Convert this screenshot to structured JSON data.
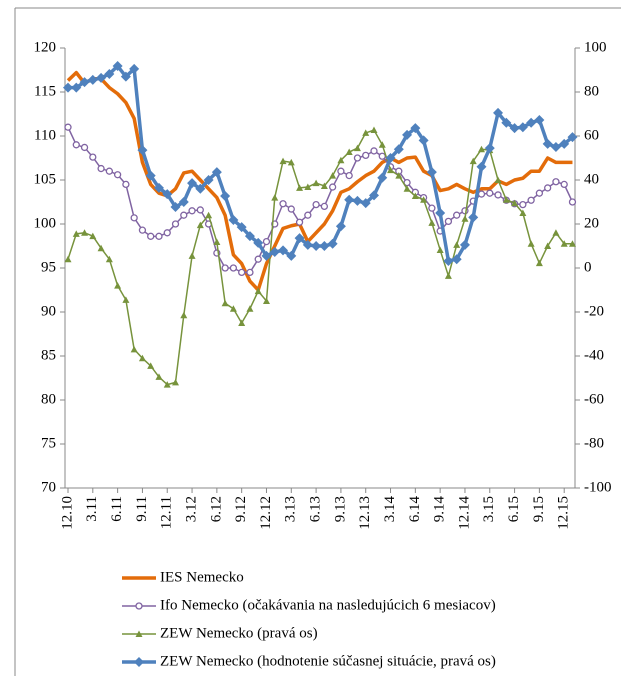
{
  "chart_data": {
    "type": "line",
    "categories": [
      "12.10",
      null,
      null,
      "3.11",
      null,
      null,
      "6.11",
      null,
      null,
      "9.11",
      null,
      null,
      "12.11",
      null,
      null,
      "3.12",
      null,
      null,
      "6.12",
      null,
      null,
      "9.12",
      null,
      null,
      "12.12",
      null,
      null,
      "3.13",
      null,
      null,
      "6.13",
      null,
      null,
      "9.13",
      null,
      null,
      "12.13",
      null,
      null,
      "3.14",
      null,
      null,
      "6.14",
      null,
      null,
      "9.14",
      null,
      null,
      "12.14",
      null,
      null,
      "3.15",
      null,
      null,
      "6.15",
      null,
      null,
      "9.15",
      null,
      null,
      "12.15",
      null
    ],
    "ylim": [
      70,
      120
    ],
    "yticks": [
      70,
      75,
      80,
      85,
      90,
      95,
      100,
      105,
      110,
      115,
      120
    ],
    "y2lim": [
      -100,
      100
    ],
    "y2ticks": [
      -100,
      -80,
      -60,
      -40,
      -20,
      0,
      20,
      40,
      60,
      80,
      100
    ],
    "legend": "bottom",
    "series": [
      {
        "name": "IES Nemecko",
        "color": "#e36c0a",
        "marker": "none",
        "values": [
          116.3,
          117.2,
          116,
          116.5,
          116.5,
          115.5,
          114.8,
          113.8,
          112,
          107,
          104.5,
          103.5,
          103.2,
          104,
          105.8,
          106,
          105,
          104,
          103,
          101,
          96.5,
          95.5,
          93.5,
          92.5,
          95.5,
          97.5,
          99.5,
          99.8,
          100,
          98,
          99,
          100,
          101.5,
          103.6,
          104,
          104.8,
          105.5,
          106,
          107,
          107.5,
          107,
          107.5,
          107.6,
          106,
          105.5,
          103.8,
          104,
          104.5,
          104,
          103.6,
          104,
          104,
          104.9,
          104.5,
          105,
          105.2,
          106,
          106,
          107.5,
          107,
          107,
          107
        ]
      },
      {
        "name": "Ifo Nemecko (očakávania na nasledujúcich 6 mesiacov)",
        "color": "#8064a2",
        "marker": "circle",
        "values": [
          111,
          109,
          108.7,
          107.6,
          106.3,
          106,
          105.6,
          104.5,
          100.7,
          99.3,
          98.6,
          98.6,
          99,
          100,
          101,
          101.5,
          101.6,
          100,
          96.7,
          95,
          95,
          94.5,
          94.5,
          96,
          98,
          100,
          102.3,
          101.7,
          100.2,
          101,
          102.2,
          102,
          104.2,
          106,
          105.5,
          107.5,
          107.8,
          108.3,
          107.7,
          106.5,
          106,
          104.7,
          103.6,
          103,
          101.8,
          99.2,
          100.3,
          101,
          101.5,
          102.6,
          103.4,
          103.5,
          103.3,
          102.7,
          102.3,
          102.2,
          102.7,
          103.5,
          104.1,
          104.8,
          104.5,
          102.5
        ]
      },
      {
        "name": "ZEW Nemecko (pravá os)",
        "color": "#77933c",
        "marker": "triangle",
        "axis": "y2",
        "values": [
          4,
          15.5,
          16,
          14.5,
          9,
          4,
          -8,
          -14.5,
          -37,
          -41,
          -44.5,
          -49.5,
          -53,
          -52,
          -21.5,
          5.5,
          19.5,
          24,
          11.8,
          -16,
          -18.5,
          -25,
          -18.5,
          -10.5,
          -15,
          32,
          48.6,
          48,
          36.4,
          36.8,
          38.6,
          37.3,
          42,
          49,
          52.7,
          54.5,
          61.4,
          62.7,
          56,
          44.5,
          42,
          36,
          32.7,
          31,
          20.5,
          8.2,
          -3.6,
          10.5,
          22.4,
          48.6,
          54,
          53.6,
          40,
          31,
          29.5,
          25,
          11,
          2.2,
          10,
          16,
          11,
          11
        ]
      },
      {
        "name": "ZEW Nemecko (hodnotenie súčasnej situácie, pravá os)",
        "color": "#4f81bd",
        "marker": "diamond",
        "axis": "y2",
        "values": [
          82,
          82,
          84.5,
          85.5,
          86.4,
          88.2,
          91.8,
          87,
          90.5,
          53.6,
          42,
          36.4,
          33.6,
          27.7,
          30,
          38.6,
          36,
          40,
          43.6,
          32.7,
          21.8,
          18.6,
          14.5,
          11.4,
          5.5,
          7.3,
          8,
          5.5,
          13.6,
          10.5,
          10,
          10,
          11,
          19,
          31,
          30.5,
          29.5,
          33,
          41,
          50,
          54,
          60.5,
          63.6,
          58,
          43.6,
          25,
          3.2,
          4,
          10.5,
          23,
          46,
          54.5,
          70.5,
          66,
          63.6,
          64,
          66,
          67.3,
          56.4,
          55,
          56.4,
          59.5
        ]
      }
    ]
  }
}
